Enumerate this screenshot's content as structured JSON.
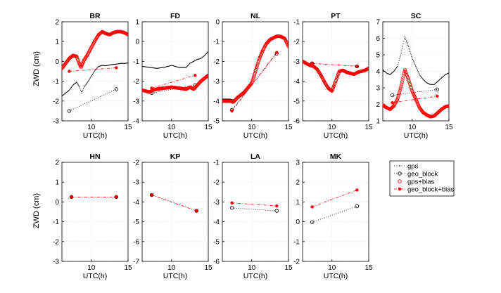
{
  "figure": {
    "ylabel": "ZWD (cm)",
    "xlabel": "UTC(h)",
    "legend": [
      {
        "label": "gps",
        "style": "gps"
      },
      {
        "label": "geo_block",
        "style": "geo_block"
      },
      {
        "label": "gps+bias",
        "style": "gps_bias"
      },
      {
        "label": "geo_block+bias",
        "style": "geo_bias"
      }
    ],
    "colors": {
      "black": "#000000",
      "red": "#ff0000",
      "grid": "#d9d9d9",
      "axis": "#000000"
    }
  },
  "chart_data": [
    {
      "type": "line",
      "title": "BR",
      "xlim": [
        6,
        15
      ],
      "ylim": [
        -3,
        2
      ],
      "xticks": [
        10,
        15
      ],
      "yticks": [
        -3,
        -2,
        -1,
        0,
        1,
        2
      ],
      "ytick_labels": [
        "-3",
        "-2",
        "-1",
        "0",
        "1",
        "2"
      ],
      "series": [
        {
          "name": "gps",
          "style": "gps",
          "x": [
            6,
            6.5,
            7,
            7.5,
            8,
            8.4,
            8.7,
            9,
            9.5,
            10,
            10.5,
            11,
            11.5,
            12,
            12.5,
            13,
            13.5,
            14,
            14.5,
            15
          ],
          "y": [
            -1.75,
            -1.6,
            -1.45,
            -1.2,
            -1.05,
            -1.3,
            -1.6,
            -1.3,
            -1.05,
            -0.75,
            -0.45,
            -0.25,
            -0.2,
            -0.22,
            -0.18,
            -0.15,
            -0.13,
            -0.1,
            -0.1,
            -0.08
          ]
        },
        {
          "name": "geo_block",
          "style": "geo_block",
          "x": [
            7,
            13.4
          ],
          "y": [
            -2.5,
            -1.4
          ]
        },
        {
          "name": "gps+bias",
          "style": "gps_bias",
          "x": [
            6,
            6.5,
            7,
            7.5,
            8,
            8.3,
            8.6,
            9,
            9.5,
            10,
            10.5,
            11,
            11.5,
            12,
            12.5,
            13,
            13.5,
            14,
            14.5,
            15
          ],
          "y": [
            -0.35,
            -0.1,
            0.15,
            0.3,
            0.25,
            -0.05,
            -0.3,
            0.05,
            0.35,
            0.7,
            1.05,
            1.35,
            1.5,
            1.4,
            1.35,
            1.45,
            1.5,
            1.5,
            1.45,
            1.35
          ]
        },
        {
          "name": "geo_block+bias",
          "style": "geo_bias",
          "x": [
            7,
            13.4
          ],
          "y": [
            -0.5,
            -0.32
          ]
        }
      ]
    },
    {
      "type": "line",
      "title": "FD",
      "xlim": [
        6,
        15
      ],
      "ylim": [
        -4,
        1
      ],
      "xticks": [
        10,
        15
      ],
      "yticks": [
        -4,
        -3,
        -2,
        -1,
        0,
        1
      ],
      "ytick_labels": [
        "-4",
        "-3",
        "-2",
        "-1",
        "0",
        "1"
      ],
      "series": [
        {
          "name": "gps",
          "style": "gps",
          "x": [
            6,
            7,
            8,
            9,
            10,
            11,
            12,
            12.5,
            13,
            13.5,
            14,
            14.5,
            15
          ],
          "y": [
            -1.25,
            -1.3,
            -1.35,
            -1.3,
            -1.2,
            -1.3,
            -1.3,
            -1.1,
            -1.0,
            -0.9,
            -0.85,
            -0.7,
            -0.5
          ]
        },
        {
          "name": "geo_block",
          "style": "geo_block",
          "x": [
            7.3,
            13.2
          ],
          "y": [
            -2.6,
            -2.2
          ]
        },
        {
          "name": "gps+bias",
          "style": "gps_bias",
          "x": [
            6,
            6.5,
            7,
            7.5,
            8,
            9,
            10,
            11,
            12,
            12.5,
            13,
            13.5,
            14,
            14.5,
            15
          ],
          "y": [
            -2.45,
            -2.5,
            -2.55,
            -2.45,
            -2.4,
            -2.35,
            -2.3,
            -2.35,
            -2.4,
            -2.3,
            -2.4,
            -2.2,
            -2.0,
            -1.85,
            -1.7
          ]
        },
        {
          "name": "geo_block+bias",
          "style": "geo_bias",
          "x": [
            7.3,
            13.2
          ],
          "y": [
            -2.35,
            -1.7
          ]
        }
      ]
    },
    {
      "type": "line",
      "title": "NL",
      "xlim": [
        6,
        15
      ],
      "ylim": [
        -5,
        0
      ],
      "xticks": [
        10,
        15
      ],
      "yticks": [
        -5,
        -4,
        -3,
        -2,
        -1,
        0
      ],
      "ytick_labels": [
        "-5",
        "-4",
        "-3",
        "-2",
        "-1",
        "0"
      ],
      "series": [
        {
          "name": "gps",
          "style": "gps",
          "x": [
            6,
            7,
            7.5,
            8,
            9,
            10,
            10.5,
            11,
            11.5,
            12,
            12.5,
            13,
            13.5,
            14,
            14.5,
            15
          ],
          "y": [
            -3.9,
            -3.9,
            -3.95,
            -3.8,
            -3.5,
            -3.0,
            -2.4,
            -1.8,
            -1.35,
            -1.05,
            -0.85,
            -0.75,
            -0.68,
            -0.7,
            -0.8,
            -1.2
          ]
        },
        {
          "name": "geo_block",
          "style": "geo_block",
          "x": [
            7.3,
            13.4
          ],
          "y": [
            -4.45,
            -1.6
          ]
        },
        {
          "name": "gps+bias",
          "style": "gps_bias",
          "x": [
            6,
            7,
            7.5,
            8,
            9,
            10,
            10.5,
            11,
            11.5,
            12,
            12.5,
            13,
            13.5,
            14,
            14.5,
            15
          ],
          "y": [
            -4.0,
            -4.0,
            -4.05,
            -3.85,
            -3.55,
            -3.1,
            -2.5,
            -1.9,
            -1.45,
            -1.1,
            -0.9,
            -0.8,
            -0.72,
            -0.75,
            -0.85,
            -1.25
          ]
        },
        {
          "name": "geo_block+bias",
          "style": "geo_bias",
          "x": [
            7.3,
            13.4
          ],
          "y": [
            -4.5,
            -1.55
          ]
        }
      ]
    },
    {
      "type": "line",
      "title": "PT",
      "xlim": [
        6,
        15
      ],
      "ylim": [
        -6,
        -1
      ],
      "xticks": [
        10,
        15
      ],
      "yticks": [
        -6,
        -5,
        -4,
        -3,
        -2,
        -1
      ],
      "ytick_labels": [
        "-6",
        "-5",
        "-4",
        "-3",
        "-2",
        "-1"
      ],
      "series": [
        {
          "name": "gps",
          "style": "gps",
          "x": [
            6,
            6.5,
            7,
            7.5,
            8,
            8.5,
            9,
            9.5,
            10,
            10.5,
            11,
            11.5,
            12,
            12.5,
            13,
            13.5,
            14,
            14.5,
            15
          ],
          "y": [
            -3.0,
            -3.1,
            -3.2,
            -3.25,
            -3.4,
            -3.7,
            -4.05,
            -4.35,
            -4.5,
            -4.0,
            -3.5,
            -3.45,
            -3.55,
            -3.6,
            -3.65,
            -3.55,
            -3.5,
            -3.45,
            -3.35
          ]
        },
        {
          "name": "geo_block",
          "style": "geo_block",
          "x": [
            7.3,
            13.4
          ],
          "y": [
            -3.1,
            -3.25
          ]
        },
        {
          "name": "gps+bias",
          "style": "gps_bias",
          "x": [
            6,
            6.5,
            7,
            7.5,
            8,
            8.5,
            9,
            9.5,
            10,
            10.5,
            11,
            11.5,
            12,
            12.5,
            13,
            13.5,
            14,
            14.5,
            15
          ],
          "y": [
            -3.0,
            -3.1,
            -3.2,
            -3.25,
            -3.4,
            -3.7,
            -4.05,
            -4.35,
            -4.5,
            -4.0,
            -3.5,
            -3.45,
            -3.55,
            -3.6,
            -3.65,
            -3.55,
            -3.5,
            -3.45,
            -3.35
          ]
        },
        {
          "name": "geo_block+bias",
          "style": "geo_bias",
          "x": [
            7.3,
            13.4
          ],
          "y": [
            -3.1,
            -3.25
          ]
        }
      ]
    },
    {
      "type": "line",
      "title": "SC",
      "xlim": [
        6,
        15
      ],
      "ylim": [
        1,
        7
      ],
      "xticks": [
        10,
        15
      ],
      "yticks": [
        1,
        2,
        3,
        4,
        5,
        6,
        7
      ],
      "ytick_labels": [
        "1",
        "2",
        "3",
        "4",
        "5",
        "6",
        "7"
      ],
      "series": [
        {
          "name": "gps",
          "style": "gps",
          "x": [
            6,
            6.5,
            7,
            7.5,
            8,
            8.5,
            9,
            9.5,
            10,
            10.5,
            11,
            11.5,
            12,
            12.5,
            13,
            13.5,
            14,
            14.5,
            15
          ],
          "y": [
            4.1,
            3.9,
            3.8,
            4.0,
            4.3,
            5.1,
            6.1,
            5.5,
            4.8,
            4.3,
            3.8,
            3.5,
            3.3,
            3.2,
            3.2,
            3.4,
            3.6,
            3.8,
            3.9
          ]
        },
        {
          "name": "geo_block",
          "style": "geo_block",
          "x": [
            7.3,
            13.4
          ],
          "y": [
            2.55,
            2.9
          ]
        },
        {
          "name": "gps+bias",
          "style": "gps_bias",
          "x": [
            6,
            6.5,
            7,
            7.5,
            8,
            8.5,
            9,
            9.5,
            10,
            10.5,
            11,
            11.5,
            12,
            12.5,
            13,
            13.5,
            14,
            14.5,
            15
          ],
          "y": [
            1.95,
            1.8,
            1.7,
            1.9,
            2.3,
            3.1,
            4.1,
            3.5,
            2.8,
            2.3,
            1.8,
            1.5,
            1.35,
            1.25,
            1.3,
            1.5,
            1.7,
            1.85,
            1.9
          ]
        },
        {
          "name": "geo_block+bias",
          "style": "geo_bias",
          "x": [
            7.3,
            13.4
          ],
          "y": [
            2.1,
            2.5
          ]
        }
      ]
    },
    {
      "type": "line",
      "title": "HN",
      "xlim": [
        6,
        15
      ],
      "ylim": [
        -3,
        2
      ],
      "xticks": [
        10,
        15
      ],
      "yticks": [
        -3,
        -2,
        -1,
        0,
        1,
        2
      ],
      "ytick_labels": [
        "-3",
        "-2",
        "-1",
        "0",
        "1",
        "2"
      ],
      "series": [
        {
          "name": "geo_block",
          "style": "geo_block",
          "x": [
            7.3,
            13.4
          ],
          "y": [
            0.25,
            0.25
          ]
        },
        {
          "name": "geo_block+bias",
          "style": "geo_bias",
          "x": [
            7.3,
            13.4
          ],
          "y": [
            0.25,
            0.25
          ]
        }
      ]
    },
    {
      "type": "line",
      "title": "KP",
      "xlim": [
        6,
        15
      ],
      "ylim": [
        -7,
        -2
      ],
      "xticks": [
        10,
        15
      ],
      "yticks": [
        -7,
        -6,
        -5,
        -4,
        -3,
        -2
      ],
      "ytick_labels": [
        "-7",
        "-6",
        "-5",
        "-4",
        "-3",
        "-2"
      ],
      "series": [
        {
          "name": "geo_block",
          "style": "geo_block",
          "x": [
            7.3,
            13.4
          ],
          "y": [
            -3.65,
            -4.45
          ]
        },
        {
          "name": "geo_block+bias",
          "style": "geo_bias",
          "x": [
            7.3,
            13.4
          ],
          "y": [
            -3.65,
            -4.45
          ]
        }
      ]
    },
    {
      "type": "line",
      "title": "LA",
      "xlim": [
        6,
        15
      ],
      "ylim": [
        -6,
        -1
      ],
      "xticks": [
        10,
        15
      ],
      "yticks": [
        -6,
        -5,
        -4,
        -3,
        -2,
        -1
      ],
      "ytick_labels": [
        "-6",
        "-5",
        "-4",
        "-3",
        "-2",
        "-1"
      ],
      "series": [
        {
          "name": "geo_block",
          "style": "geo_block",
          "x": [
            7.3,
            13.4
          ],
          "y": [
            -3.3,
            -3.45
          ]
        },
        {
          "name": "geo_block+bias",
          "style": "geo_bias",
          "x": [
            7.3,
            13.4
          ],
          "y": [
            -3.05,
            -3.2
          ]
        }
      ]
    },
    {
      "type": "line",
      "title": "MK",
      "xlim": [
        6,
        15
      ],
      "ylim": [
        -2,
        3
      ],
      "xticks": [
        10,
        15
      ],
      "yticks": [
        -2,
        -1,
        0,
        1,
        2,
        3
      ],
      "ytick_labels": [
        "-2",
        "-1",
        "0",
        "1",
        "2",
        "3"
      ],
      "series": [
        {
          "name": "geo_block",
          "style": "geo_block",
          "x": [
            7.3,
            13.4
          ],
          "y": [
            -0.02,
            0.78
          ]
        },
        {
          "name": "geo_block+bias",
          "style": "geo_bias",
          "x": [
            7.3,
            13.4
          ],
          "y": [
            0.75,
            1.6
          ]
        }
      ]
    }
  ]
}
